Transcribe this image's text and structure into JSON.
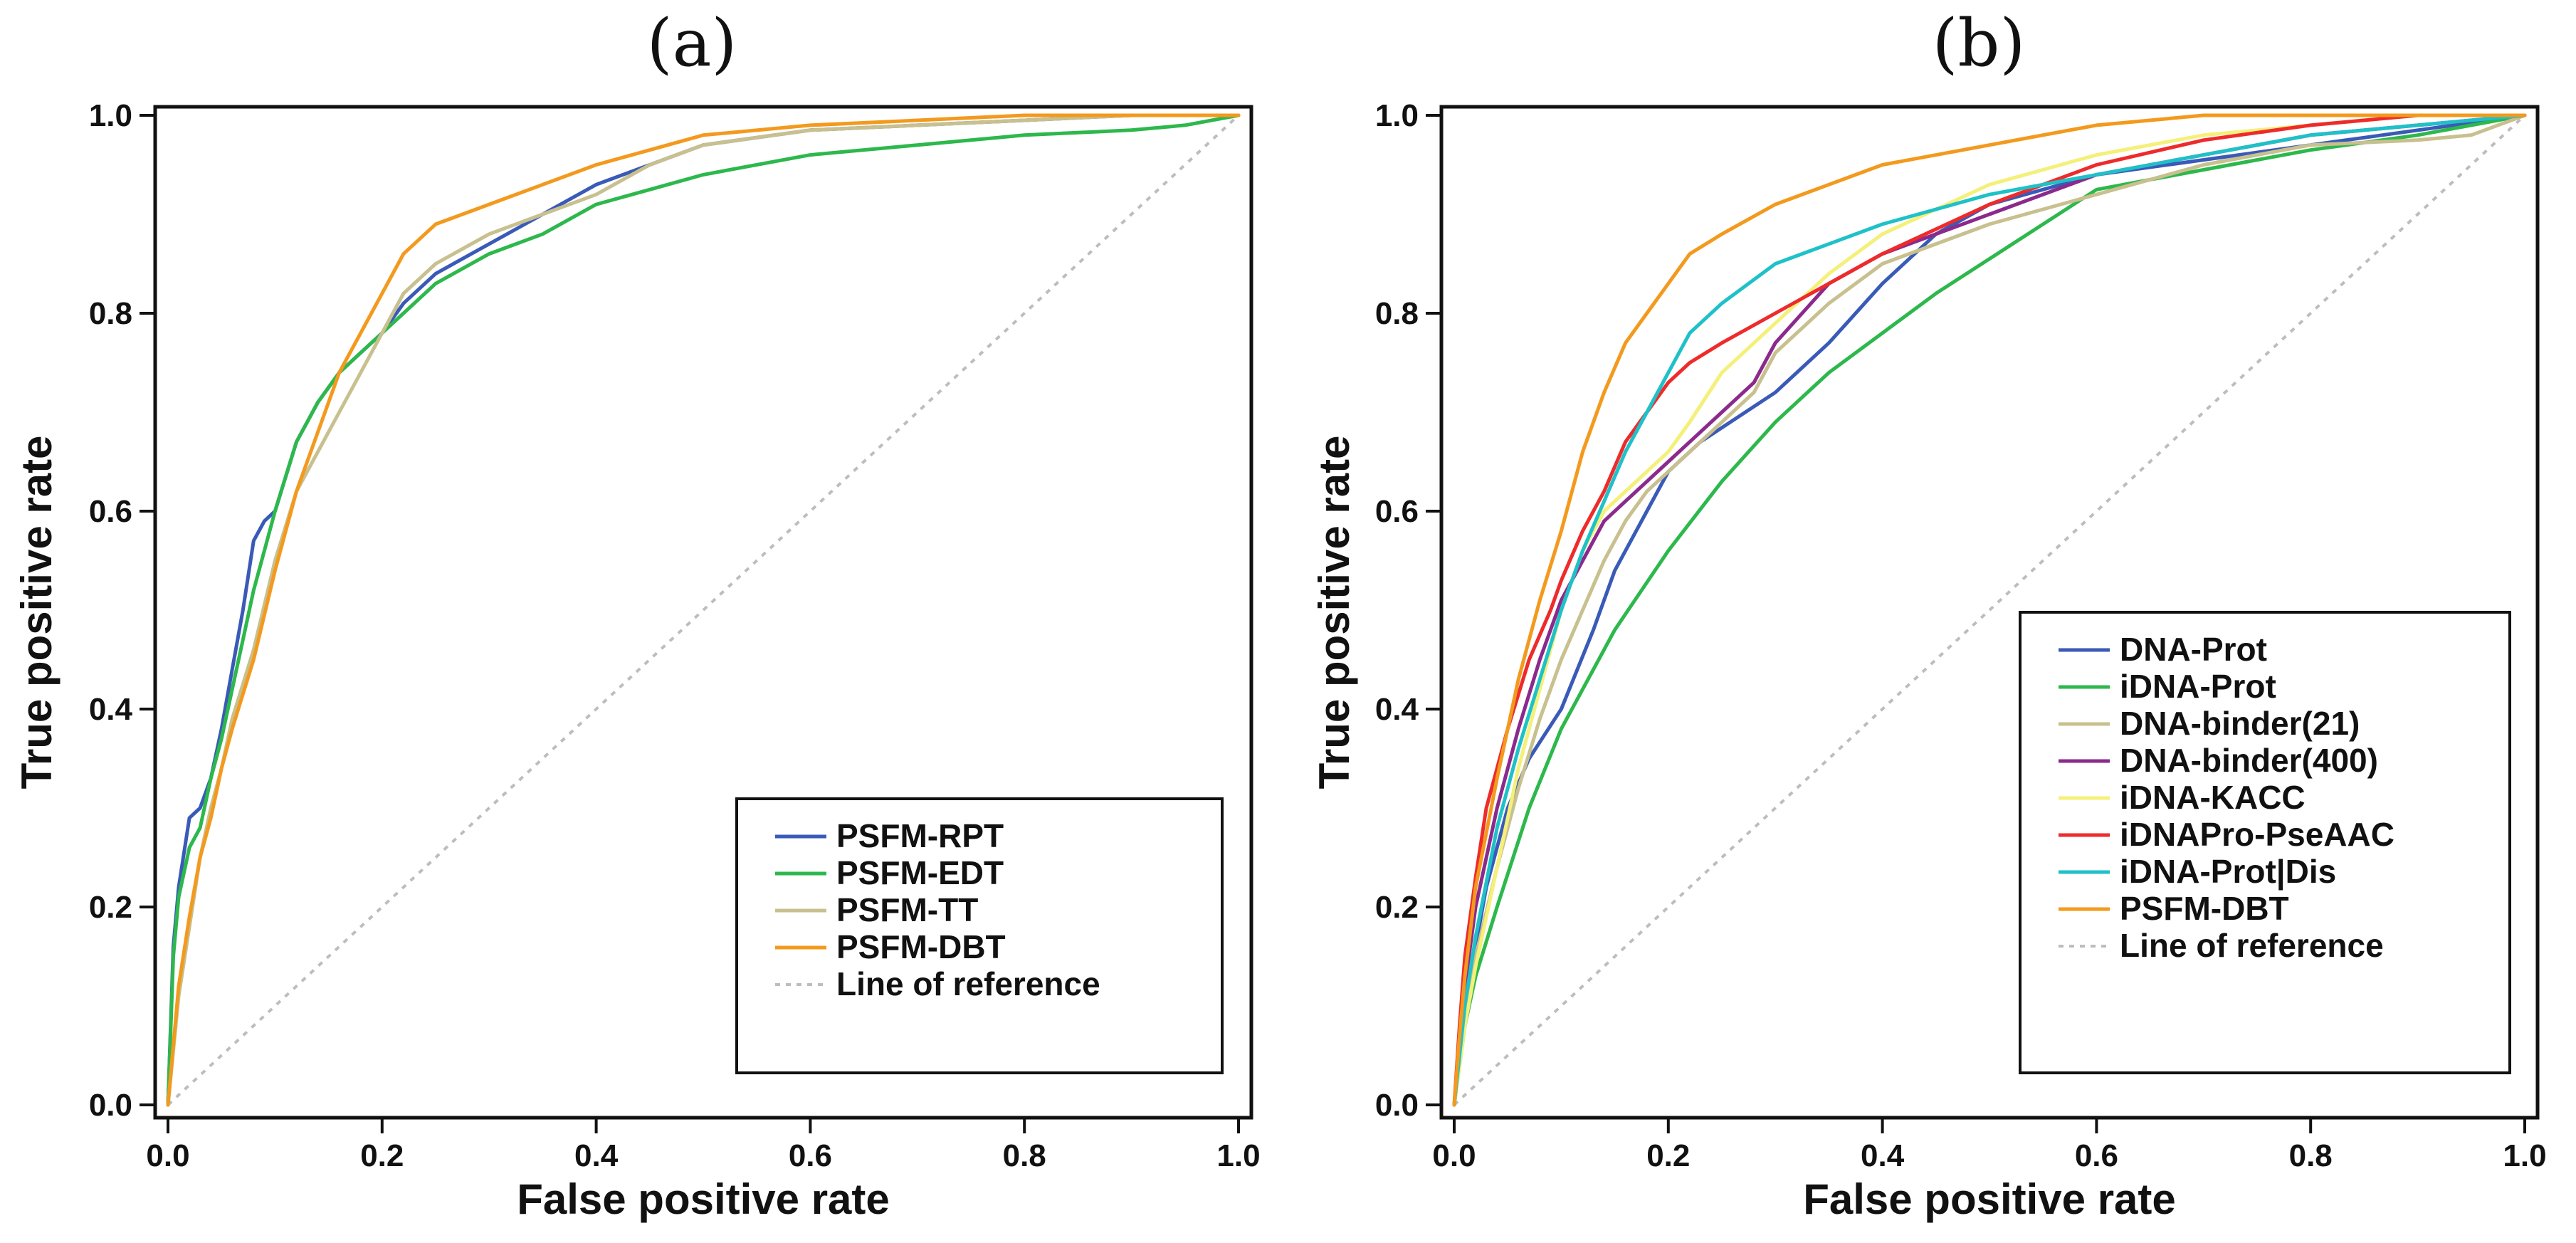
{
  "chart_data": [
    {
      "id": "a",
      "type": "line",
      "panel_label": "(a)",
      "title": "",
      "xlabel": "False positive rate",
      "ylabel": "True positive rate",
      "xlim": [
        0,
        1
      ],
      "ylim": [
        0,
        1
      ],
      "xticks": [
        "0.0",
        "0.2",
        "0.4",
        "0.6",
        "0.8",
        "1.0"
      ],
      "yticks": [
        "0.0",
        "0.2",
        "0.4",
        "0.6",
        "0.8",
        "1.0"
      ],
      "legend_position": "lower-right",
      "reference_line": {
        "name": "Line of reference",
        "color": "#bdbdbd"
      },
      "series": [
        {
          "name": "PSFM-RPT",
          "color": "#3a5ab8",
          "x": [
            0,
            0.005,
            0.01,
            0.02,
            0.03,
            0.04,
            0.05,
            0.06,
            0.07,
            0.08,
            0.09,
            0.1,
            0.12,
            0.14,
            0.16,
            0.18,
            0.2,
            0.22,
            0.25,
            0.3,
            0.35,
            0.4,
            0.45,
            0.5,
            0.6,
            0.7,
            0.8,
            0.9,
            1.0
          ],
          "y": [
            0,
            0.16,
            0.22,
            0.29,
            0.3,
            0.33,
            0.38,
            0.44,
            0.5,
            0.57,
            0.59,
            0.6,
            0.67,
            0.71,
            0.74,
            0.76,
            0.78,
            0.81,
            0.84,
            0.87,
            0.9,
            0.93,
            0.95,
            0.97,
            0.985,
            0.99,
            0.995,
            1.0,
            1.0
          ]
        },
        {
          "name": "PSFM-EDT",
          "color": "#2db84c",
          "x": [
            0,
            0.005,
            0.01,
            0.02,
            0.03,
            0.04,
            0.05,
            0.06,
            0.07,
            0.08,
            0.09,
            0.1,
            0.12,
            0.14,
            0.16,
            0.18,
            0.2,
            0.22,
            0.25,
            0.3,
            0.35,
            0.4,
            0.45,
            0.5,
            0.6,
            0.7,
            0.8,
            0.9,
            0.95,
            1.0
          ],
          "y": [
            0,
            0.15,
            0.21,
            0.26,
            0.28,
            0.33,
            0.37,
            0.42,
            0.47,
            0.52,
            0.56,
            0.6,
            0.67,
            0.71,
            0.74,
            0.76,
            0.78,
            0.8,
            0.83,
            0.86,
            0.88,
            0.91,
            0.925,
            0.94,
            0.96,
            0.97,
            0.98,
            0.985,
            0.99,
            1.0
          ]
        },
        {
          "name": "PSFM-TT",
          "color": "#c8c08e",
          "x": [
            0,
            0.01,
            0.02,
            0.03,
            0.04,
            0.05,
            0.06,
            0.08,
            0.1,
            0.12,
            0.14,
            0.16,
            0.18,
            0.2,
            0.22,
            0.25,
            0.3,
            0.35,
            0.4,
            0.45,
            0.5,
            0.6,
            0.7,
            0.8,
            0.9,
            1.0
          ],
          "y": [
            0,
            0.11,
            0.18,
            0.25,
            0.3,
            0.34,
            0.39,
            0.46,
            0.55,
            0.62,
            0.66,
            0.7,
            0.74,
            0.78,
            0.82,
            0.85,
            0.88,
            0.9,
            0.92,
            0.95,
            0.97,
            0.985,
            0.99,
            0.995,
            1.0,
            1.0
          ]
        },
        {
          "name": "PSFM-DBT",
          "color": "#f39a1e",
          "x": [
            0,
            0.01,
            0.02,
            0.03,
            0.04,
            0.05,
            0.06,
            0.08,
            0.1,
            0.12,
            0.14,
            0.16,
            0.18,
            0.2,
            0.22,
            0.25,
            0.3,
            0.35,
            0.4,
            0.45,
            0.5,
            0.6,
            0.7,
            0.8,
            0.9,
            1.0
          ],
          "y": [
            0,
            0.12,
            0.19,
            0.25,
            0.29,
            0.34,
            0.38,
            0.45,
            0.54,
            0.62,
            0.68,
            0.74,
            0.78,
            0.82,
            0.86,
            0.89,
            0.91,
            0.93,
            0.95,
            0.965,
            0.98,
            0.99,
            0.995,
            1.0,
            1.0,
            1.0
          ]
        }
      ]
    },
    {
      "id": "b",
      "type": "line",
      "panel_label": "(b)",
      "title": "",
      "xlabel": "False positive rate",
      "ylabel": "True positive rate",
      "xlim": [
        0,
        1
      ],
      "ylim": [
        0,
        1
      ],
      "xticks": [
        "0.0",
        "0.2",
        "0.4",
        "0.6",
        "0.8",
        "1.0"
      ],
      "yticks": [
        "0.0",
        "0.2",
        "0.4",
        "0.6",
        "0.8",
        "1.0"
      ],
      "legend_position": "lower-right",
      "reference_line": {
        "name": "Line of reference",
        "color": "#bdbdbd"
      },
      "series": [
        {
          "name": "DNA-Prot",
          "color": "#3a5ab8",
          "x": [
            0,
            0.005,
            0.01,
            0.02,
            0.03,
            0.05,
            0.07,
            0.1,
            0.13,
            0.15,
            0.18,
            0.2,
            0.23,
            0.3,
            0.35,
            0.4,
            0.45,
            0.5,
            0.6,
            0.8,
            1.0
          ],
          "y": [
            0,
            0.05,
            0.1,
            0.16,
            0.22,
            0.3,
            0.35,
            0.4,
            0.48,
            0.54,
            0.6,
            0.64,
            0.67,
            0.72,
            0.77,
            0.83,
            0.88,
            0.91,
            0.94,
            0.97,
            1.0
          ]
        },
        {
          "name": "iDNA-Prot",
          "color": "#2db84c",
          "x": [
            0,
            0.005,
            0.01,
            0.02,
            0.04,
            0.07,
            0.1,
            0.15,
            0.2,
            0.25,
            0.3,
            0.35,
            0.45,
            0.6,
            0.7,
            0.8,
            0.9,
            1.0
          ],
          "y": [
            0,
            0.04,
            0.08,
            0.13,
            0.2,
            0.3,
            0.38,
            0.48,
            0.56,
            0.63,
            0.69,
            0.74,
            0.82,
            0.925,
            0.945,
            0.965,
            0.98,
            1.0
          ]
        },
        {
          "name": "DNA-binder(21)",
          "color": "#c8c08e",
          "x": [
            0,
            0.005,
            0.01,
            0.02,
            0.04,
            0.06,
            0.08,
            0.1,
            0.12,
            0.14,
            0.16,
            0.18,
            0.2,
            0.22,
            0.25,
            0.28,
            0.3,
            0.35,
            0.4,
            0.5,
            0.6,
            0.7,
            0.8,
            0.9,
            0.95,
            1.0
          ],
          "y": [
            0,
            0.05,
            0.09,
            0.15,
            0.24,
            0.32,
            0.39,
            0.45,
            0.5,
            0.55,
            0.59,
            0.62,
            0.64,
            0.66,
            0.69,
            0.72,
            0.76,
            0.81,
            0.85,
            0.89,
            0.92,
            0.95,
            0.97,
            0.975,
            0.98,
            1.0
          ]
        },
        {
          "name": "DNA-binder(400)",
          "color": "#8b2a8c",
          "x": [
            0,
            0.005,
            0.01,
            0.02,
            0.04,
            0.06,
            0.08,
            0.1,
            0.12,
            0.14,
            0.16,
            0.18,
            0.2,
            0.22,
            0.25,
            0.28,
            0.3,
            0.35,
            0.4,
            0.5,
            0.6,
            0.7,
            0.8,
            0.9,
            1.0
          ],
          "y": [
            0,
            0.06,
            0.12,
            0.2,
            0.3,
            0.38,
            0.45,
            0.51,
            0.55,
            0.59,
            0.61,
            0.63,
            0.65,
            0.67,
            0.7,
            0.73,
            0.77,
            0.83,
            0.86,
            0.9,
            0.94,
            0.96,
            0.98,
            0.99,
            1.0
          ]
        },
        {
          "name": "iDNA-KACC",
          "color": "#f4f07a",
          "x": [
            0,
            0.005,
            0.01,
            0.02,
            0.04,
            0.06,
            0.08,
            0.1,
            0.12,
            0.14,
            0.16,
            0.18,
            0.2,
            0.22,
            0.25,
            0.3,
            0.35,
            0.4,
            0.5,
            0.6,
            0.7,
            0.8,
            0.9,
            1.0
          ],
          "y": [
            0,
            0.04,
            0.08,
            0.14,
            0.24,
            0.34,
            0.42,
            0.5,
            0.56,
            0.6,
            0.62,
            0.64,
            0.66,
            0.69,
            0.74,
            0.79,
            0.84,
            0.88,
            0.93,
            0.96,
            0.98,
            0.99,
            1.0,
            1.0
          ]
        },
        {
          "name": "iDNAPro-PseAAC",
          "color": "#ee2b2b",
          "x": [
            0,
            0.005,
            0.01,
            0.02,
            0.03,
            0.05,
            0.07,
            0.09,
            0.1,
            0.12,
            0.14,
            0.16,
            0.18,
            0.2,
            0.22,
            0.25,
            0.3,
            0.35,
            0.4,
            0.5,
            0.6,
            0.7,
            0.8,
            0.9,
            1.0
          ],
          "y": [
            0,
            0.08,
            0.15,
            0.23,
            0.3,
            0.38,
            0.45,
            0.5,
            0.53,
            0.58,
            0.62,
            0.67,
            0.7,
            0.73,
            0.75,
            0.77,
            0.8,
            0.83,
            0.86,
            0.91,
            0.95,
            0.975,
            0.99,
            1.0,
            1.0
          ]
        },
        {
          "name": "iDNA-Prot|Dis",
          "color": "#1fc1c8",
          "x": [
            0,
            0.005,
            0.01,
            0.02,
            0.04,
            0.06,
            0.08,
            0.1,
            0.12,
            0.14,
            0.16,
            0.18,
            0.2,
            0.22,
            0.25,
            0.3,
            0.35,
            0.4,
            0.5,
            0.6,
            0.7,
            0.8,
            0.9,
            1.0
          ],
          "y": [
            0,
            0.05,
            0.1,
            0.17,
            0.28,
            0.36,
            0.43,
            0.5,
            0.56,
            0.61,
            0.66,
            0.7,
            0.74,
            0.78,
            0.81,
            0.85,
            0.87,
            0.89,
            0.92,
            0.94,
            0.96,
            0.98,
            0.99,
            1.0
          ]
        },
        {
          "name": "PSFM-DBT",
          "color": "#f39a1e",
          "x": [
            0,
            0.005,
            0.01,
            0.02,
            0.04,
            0.06,
            0.08,
            0.1,
            0.12,
            0.14,
            0.16,
            0.18,
            0.2,
            0.22,
            0.25,
            0.3,
            0.35,
            0.4,
            0.5,
            0.6,
            0.7,
            0.8,
            0.9,
            1.0
          ],
          "y": [
            0,
            0.07,
            0.13,
            0.22,
            0.33,
            0.43,
            0.51,
            0.58,
            0.66,
            0.72,
            0.77,
            0.8,
            0.83,
            0.86,
            0.88,
            0.91,
            0.93,
            0.95,
            0.97,
            0.99,
            1.0,
            1.0,
            1.0,
            1.0
          ]
        }
      ]
    }
  ]
}
